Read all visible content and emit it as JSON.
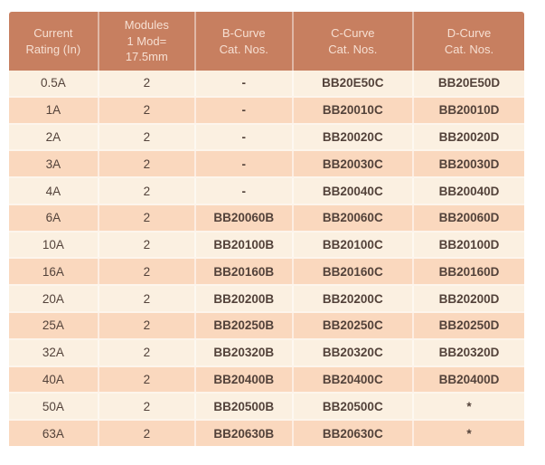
{
  "table": {
    "columns": [
      {
        "label": "Current\nRating (In)"
      },
      {
        "label": "Modules\n1 Mod=\n17.5mm"
      },
      {
        "label": "B-Curve\nCat. Nos."
      },
      {
        "label": "C-Curve\nCat. Nos."
      },
      {
        "label": "D-Curve\nCat. Nos."
      }
    ],
    "rows": [
      {
        "rating": "0.5A",
        "modules": "2",
        "b_curve": "-",
        "c_curve": "BB20E50C",
        "d_curve": "BB20E50D"
      },
      {
        "rating": "1A",
        "modules": "2",
        "b_curve": "-",
        "c_curve": "BB20010C",
        "d_curve": "BB20010D"
      },
      {
        "rating": "2A",
        "modules": "2",
        "b_curve": "-",
        "c_curve": "BB20020C",
        "d_curve": "BB20020D"
      },
      {
        "rating": "3A",
        "modules": "2",
        "b_curve": "-",
        "c_curve": "BB20030C",
        "d_curve": "BB20030D"
      },
      {
        "rating": "4A",
        "modules": "2",
        "b_curve": "-",
        "c_curve": "BB20040C",
        "d_curve": "BB20040D"
      },
      {
        "rating": "6A",
        "modules": "2",
        "b_curve": "BB20060B",
        "c_curve": "BB20060C",
        "d_curve": "BB20060D"
      },
      {
        "rating": "10A",
        "modules": "2",
        "b_curve": "BB20100B",
        "c_curve": "BB20100C",
        "d_curve": "BB20100D"
      },
      {
        "rating": "16A",
        "modules": "2",
        "b_curve": "BB20160B",
        "c_curve": "BB20160C",
        "d_curve": "BB20160D"
      },
      {
        "rating": "20A",
        "modules": "2",
        "b_curve": "BB20200B",
        "c_curve": "BB20200C",
        "d_curve": "BB20200D"
      },
      {
        "rating": "25A",
        "modules": "2",
        "b_curve": "BB20250B",
        "c_curve": "BB20250C",
        "d_curve": "BB20250D"
      },
      {
        "rating": "32A",
        "modules": "2",
        "b_curve": "BB20320B",
        "c_curve": "BB20320C",
        "d_curve": "BB20320D"
      },
      {
        "rating": "40A",
        "modules": "2",
        "b_curve": "BB20400B",
        "c_curve": "BB20400C",
        "d_curve": "BB20400D"
      },
      {
        "rating": "50A",
        "modules": "2",
        "b_curve": "BB20500B",
        "c_curve": "BB20500C",
        "d_curve": "*"
      },
      {
        "rating": "63A",
        "modules": "2",
        "b_curve": "BB20630B",
        "c_curve": "BB20630C",
        "d_curve": "*"
      }
    ]
  },
  "colors": {
    "header_bg": "#C77F60",
    "header_text": "#F6DFD2",
    "row_light": "#FBF0E1",
    "row_dark": "#FAD8BE",
    "body_text": "#53423A",
    "separator": "#FDF5EC"
  }
}
